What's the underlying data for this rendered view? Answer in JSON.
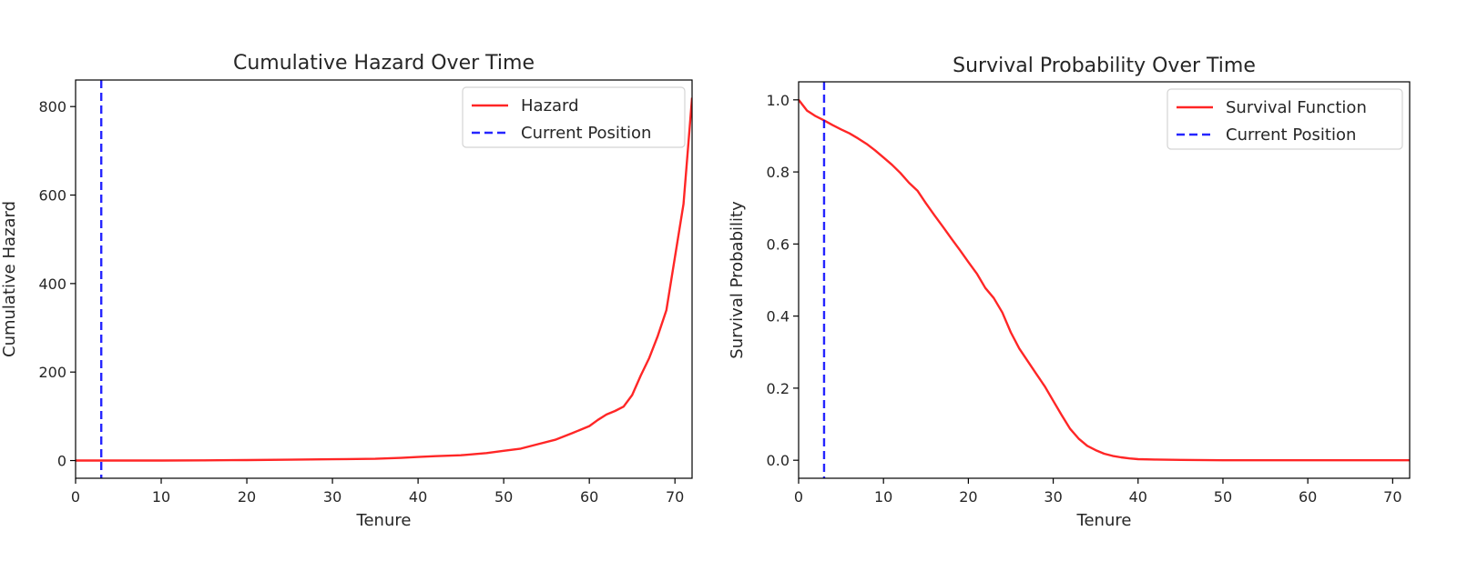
{
  "chart_data": [
    {
      "type": "line",
      "title": "Cumulative Hazard Over Time",
      "xlabel": "Tenure",
      "ylabel": "Cumulative Hazard",
      "xlim": [
        0,
        72
      ],
      "ylim": [
        -40,
        860
      ],
      "xticks": [
        0,
        10,
        20,
        30,
        40,
        50,
        60,
        70
      ],
      "yticks": [
        0,
        200,
        400,
        600,
        800
      ],
      "legend_position": "top-right",
      "series": [
        {
          "name": "Hazard",
          "color": "#ff0000",
          "style": "solid",
          "x": [
            0,
            5,
            10,
            15,
            20,
            25,
            30,
            35,
            38,
            40,
            42,
            45,
            48,
            50,
            52,
            54,
            56,
            58,
            60,
            61,
            62,
            63,
            64,
            65,
            66,
            67,
            68,
            69,
            70,
            71,
            72
          ],
          "y": [
            0,
            0,
            0,
            0.5,
            1,
            2,
            3,
            4,
            6,
            8,
            10,
            12,
            17,
            22,
            27,
            37,
            47,
            62,
            78,
            92,
            104,
            112,
            122,
            148,
            192,
            232,
            282,
            340,
            460,
            580,
            820
          ]
        },
        {
          "name": "Current Position",
          "color": "#0000ff",
          "style": "dashed",
          "x_constant": 3
        }
      ]
    },
    {
      "type": "line",
      "title": "Survival Probability Over Time",
      "xlabel": "Tenure",
      "ylabel": "Survival Probability",
      "xlim": [
        0,
        72
      ],
      "ylim": [
        -0.05,
        1.05
      ],
      "xticks": [
        0,
        10,
        20,
        30,
        40,
        50,
        60,
        70
      ],
      "yticks": [
        "0.0",
        "0.2",
        "0.4",
        "0.6",
        "0.8",
        "1.0"
      ],
      "legend_position": "top-right",
      "series": [
        {
          "name": "Survival Function",
          "color": "#ff0000",
          "style": "solid",
          "x": [
            0,
            1,
            2,
            3,
            4,
            5,
            6,
            7,
            8,
            9,
            10,
            11,
            12,
            13,
            14,
            15,
            16,
            17,
            18,
            19,
            20,
            21,
            22,
            23,
            24,
            25,
            26,
            27,
            28,
            29,
            30,
            31,
            32,
            33,
            34,
            35,
            36,
            37,
            38,
            39,
            40,
            42,
            45,
            50,
            60,
            70,
            72
          ],
          "y": [
            1.0,
            0.97,
            0.955,
            0.943,
            0.93,
            0.918,
            0.907,
            0.893,
            0.878,
            0.86,
            0.84,
            0.82,
            0.797,
            0.77,
            0.748,
            0.713,
            0.68,
            0.648,
            0.615,
            0.583,
            0.55,
            0.518,
            0.478,
            0.45,
            0.41,
            0.355,
            0.31,
            0.275,
            0.24,
            0.205,
            0.165,
            0.125,
            0.087,
            0.06,
            0.04,
            0.028,
            0.018,
            0.012,
            0.008,
            0.005,
            0.003,
            0.002,
            0.001,
            0.0,
            0.0,
            0.0,
            0.0
          ]
        },
        {
          "name": "Current Position",
          "color": "#0000ff",
          "style": "dashed",
          "x_constant": 3
        }
      ]
    }
  ]
}
